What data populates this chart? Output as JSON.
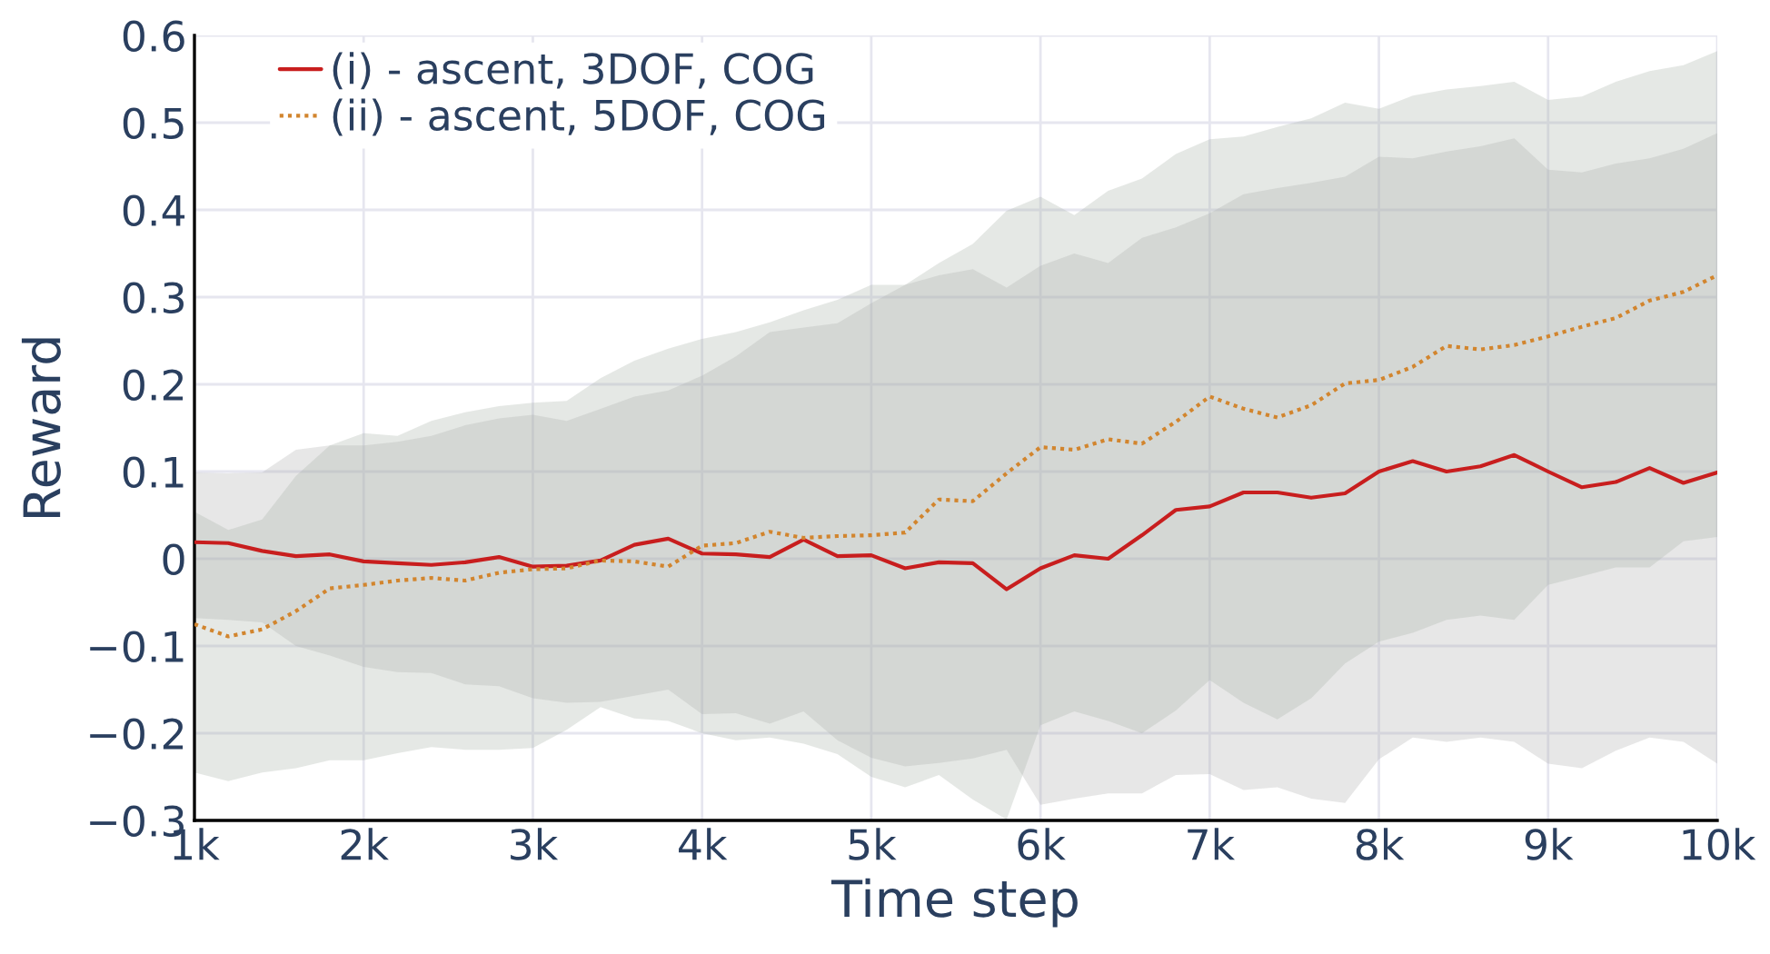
{
  "chart_data": {
    "type": "line",
    "xlabel": "Time step",
    "ylabel": "Reward",
    "x": [
      1000,
      1200,
      1400,
      1600,
      1800,
      2000,
      2200,
      2400,
      2600,
      2800,
      3000,
      3200,
      3400,
      3600,
      3800,
      4000,
      4200,
      4400,
      4600,
      4800,
      5000,
      5200,
      5400,
      5600,
      5800,
      6000,
      6200,
      6400,
      6600,
      6800,
      7000,
      7200,
      7400,
      7600,
      7800,
      8000,
      8200,
      8400,
      8600,
      8800,
      9000,
      9200,
      9400,
      9600,
      9800,
      10000
    ],
    "xlim": [
      1000,
      10000
    ],
    "xticks": [
      {
        "value": 1000,
        "label": "1k"
      },
      {
        "value": 2000,
        "label": "2k"
      },
      {
        "value": 3000,
        "label": "3k"
      },
      {
        "value": 4000,
        "label": "4k"
      },
      {
        "value": 5000,
        "label": "5k"
      },
      {
        "value": 6000,
        "label": "6k"
      },
      {
        "value": 7000,
        "label": "7k"
      },
      {
        "value": 8000,
        "label": "8k"
      },
      {
        "value": 9000,
        "label": "9k"
      },
      {
        "value": 10000,
        "label": "10k"
      }
    ],
    "ylim": [
      -0.3,
      0.6
    ],
    "yticks": [
      {
        "value": -0.3,
        "label": "−0.3"
      },
      {
        "value": -0.2,
        "label": "−0.2"
      },
      {
        "value": -0.1,
        "label": "−0.1"
      },
      0,
      0.1,
      0.2,
      0.3,
      0.4,
      0.5,
      0.6
    ],
    "grid": true,
    "legend": "top left",
    "series": [
      {
        "name": "(i) - ascent, 3DOF, COG",
        "color": "#c81e1e",
        "line_style": "solid",
        "values": [
          0.019,
          0.018,
          0.009,
          0.003,
          0.005,
          -0.003,
          -0.005,
          -0.007,
          -0.004,
          0.002,
          -0.009,
          -0.008,
          -0.002,
          0.016,
          0.023,
          0.006,
          0.005,
          0.002,
          0.022,
          0.003,
          0.004,
          -0.011,
          -0.004,
          -0.005,
          -0.035,
          -0.011,
          0.004,
          0.0,
          0.027,
          0.056,
          0.06,
          0.076,
          0.076,
          0.07,
          0.075,
          0.1,
          0.112,
          0.1,
          0.106,
          0.119,
          0.1,
          0.082,
          0.088,
          0.104,
          0.087,
          0.099
        ],
        "upper": [
          0.099,
          0.098,
          0.099,
          0.125,
          0.13,
          0.13,
          0.134,
          0.141,
          0.153,
          0.161,
          0.165,
          0.158,
          0.172,
          0.186,
          0.193,
          0.21,
          0.232,
          0.26,
          0.265,
          0.27,
          0.293,
          0.314,
          0.325,
          0.332,
          0.311,
          0.336,
          0.35,
          0.339,
          0.368,
          0.38,
          0.396,
          0.418,
          0.425,
          0.431,
          0.438,
          0.461,
          0.459,
          0.467,
          0.473,
          0.482,
          0.446,
          0.443,
          0.453,
          0.459,
          0.47,
          0.488
        ],
        "lower": [
          -0.068,
          -0.07,
          -0.073,
          -0.1,
          -0.111,
          -0.124,
          -0.13,
          -0.131,
          -0.144,
          -0.146,
          -0.16,
          -0.165,
          -0.164,
          -0.157,
          -0.15,
          -0.178,
          -0.177,
          -0.189,
          -0.175,
          -0.208,
          -0.228,
          -0.238,
          -0.234,
          -0.229,
          -0.219,
          -0.282,
          -0.275,
          -0.269,
          -0.269,
          -0.248,
          -0.247,
          -0.265,
          -0.262,
          -0.275,
          -0.28,
          -0.23,
          -0.205,
          -0.21,
          -0.205,
          -0.21,
          -0.235,
          -0.24,
          -0.22,
          -0.205,
          -0.21,
          -0.235
        ]
      },
      {
        "name": "(ii) - ascent, 5DOF, COG",
        "color": "#d2852e",
        "line_style": "dotted",
        "values": [
          -0.075,
          -0.089,
          -0.081,
          -0.06,
          -0.034,
          -0.03,
          -0.025,
          -0.022,
          -0.025,
          -0.016,
          -0.012,
          -0.011,
          -0.002,
          -0.003,
          -0.009,
          0.015,
          0.018,
          0.031,
          0.024,
          0.026,
          0.027,
          0.03,
          0.068,
          0.066,
          0.098,
          0.128,
          0.125,
          0.137,
          0.132,
          0.157,
          0.186,
          0.172,
          0.162,
          0.176,
          0.201,
          0.205,
          0.22,
          0.244,
          0.24,
          0.245,
          0.255,
          0.266,
          0.276,
          0.296,
          0.306,
          0.325
        ],
        "upper": [
          0.054,
          0.033,
          0.045,
          0.095,
          0.13,
          0.144,
          0.141,
          0.158,
          0.168,
          0.175,
          0.179,
          0.181,
          0.207,
          0.227,
          0.241,
          0.252,
          0.26,
          0.271,
          0.285,
          0.297,
          0.314,
          0.314,
          0.339,
          0.361,
          0.399,
          0.415,
          0.394,
          0.422,
          0.436,
          0.464,
          0.481,
          0.484,
          0.495,
          0.505,
          0.523,
          0.516,
          0.531,
          0.538,
          0.542,
          0.547,
          0.526,
          0.53,
          0.547,
          0.559,
          0.566,
          0.582
        ],
        "lower": [
          -0.245,
          -0.255,
          -0.245,
          -0.24,
          -0.231,
          -0.231,
          -0.223,
          -0.216,
          -0.219,
          -0.219,
          -0.217,
          -0.196,
          -0.17,
          -0.183,
          -0.186,
          -0.2,
          -0.208,
          -0.205,
          -0.212,
          -0.224,
          -0.25,
          -0.262,
          -0.248,
          -0.276,
          -0.299,
          -0.191,
          -0.175,
          -0.186,
          -0.2,
          -0.174,
          -0.139,
          -0.165,
          -0.184,
          -0.16,
          -0.12,
          -0.095,
          -0.085,
          -0.07,
          -0.065,
          -0.07,
          -0.03,
          -0.02,
          -0.01,
          -0.01,
          0.02,
          0.025
        ]
      }
    ]
  }
}
